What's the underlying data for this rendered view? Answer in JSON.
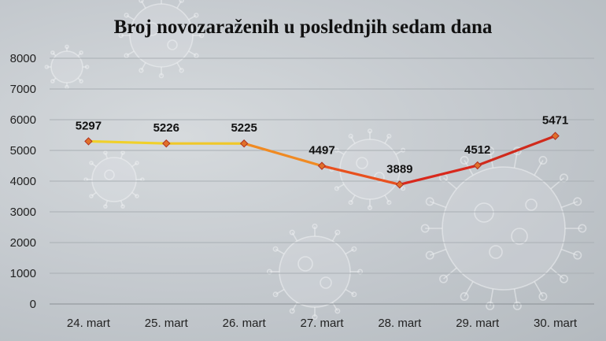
{
  "chart_data": {
    "type": "line",
    "title": "Broj novozaraženih u poslednjih sedam dana",
    "categories": [
      "24. mart",
      "25. mart",
      "26. mart",
      "27. mart",
      "28. mart",
      "29. mart",
      "30. mart"
    ],
    "values": [
      5297,
      5226,
      5225,
      4497,
      3889,
      4512,
      5471
    ],
    "data_labels": [
      "5297",
      "5226",
      "5225",
      "4497",
      "3889",
      "4512",
      "5471"
    ],
    "ylim": [
      0,
      8000
    ],
    "yticks": [
      "0",
      "1000",
      "2000",
      "3000",
      "4000",
      "5000",
      "6000",
      "7000",
      "8000"
    ],
    "grid": true,
    "line_colors": [
      "#f0d02a",
      "#f0c82a",
      "#f08a22",
      "#e8501e",
      "#d8281c",
      "#d02a1c"
    ],
    "marker_color": "#e0702a",
    "background": "virus-illustration"
  }
}
